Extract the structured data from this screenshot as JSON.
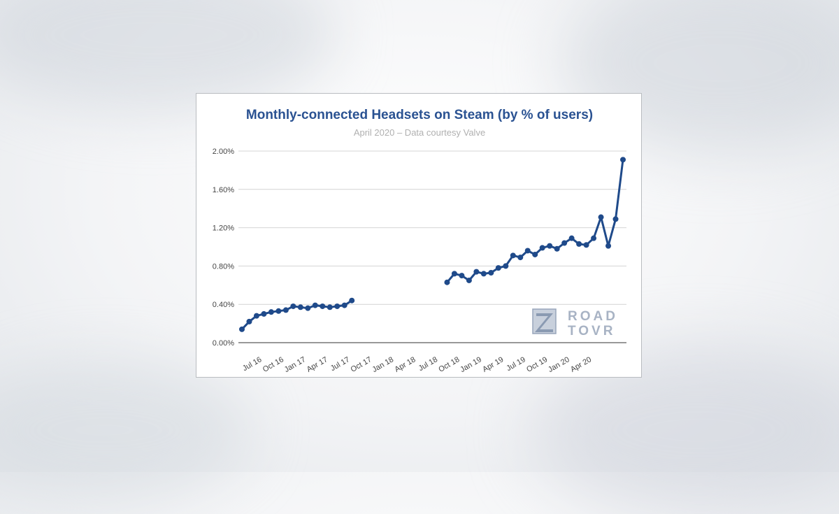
{
  "chart_data": {
    "type": "line",
    "title": "Monthly-connected Headsets on Steam (by % of users)",
    "subtitle": "April 2020 – Data courtesy Valve",
    "xlabel": "",
    "ylabel": "",
    "ylim": [
      0,
      0.02
    ],
    "yticks": [
      "0.00%",
      "0.40%",
      "0.80%",
      "1.20%",
      "1.60%",
      "2.00%"
    ],
    "ytick_values": [
      0,
      0.004,
      0.008,
      0.012,
      0.016,
      0.02
    ],
    "xtick_labels": [
      "Jul 16",
      "Oct 16",
      "Jan 17",
      "Apr 17",
      "Jul 17",
      "Oct 17",
      "Jan 18",
      "Apr 18",
      "Jul 18",
      "Oct 18",
      "Jan 19",
      "Apr 19",
      "Jul 19",
      "Oct 19",
      "Jan 20",
      "Apr 20"
    ],
    "grid": true,
    "legend": "none",
    "line_color": "#1f4a8a",
    "series": [
      {
        "name": "Headsets",
        "start": "May 16",
        "values": [
          0.0014,
          0.0022,
          0.0028,
          0.003,
          0.0032,
          0.0033,
          0.0034,
          0.0038,
          0.0037,
          0.0036,
          0.0039,
          0.0038,
          0.0037,
          0.0038,
          0.0039,
          0.0044,
          null,
          null,
          null,
          null,
          null,
          null,
          null,
          null,
          null,
          null,
          null,
          null,
          0.0063,
          0.0072,
          0.007,
          0.0065,
          0.0074,
          0.0072,
          0.0073,
          0.0078,
          0.008,
          0.0091,
          0.0089,
          0.0096,
          0.0092,
          0.0099,
          0.0101,
          0.0098,
          0.0104,
          0.0109,
          0.0103,
          0.0102,
          0.0109,
          0.0131,
          0.0101,
          0.0129,
          0.0191
        ]
      }
    ]
  },
  "watermark": {
    "text_line1": "ROAD",
    "text_line2": "TOVR"
  }
}
